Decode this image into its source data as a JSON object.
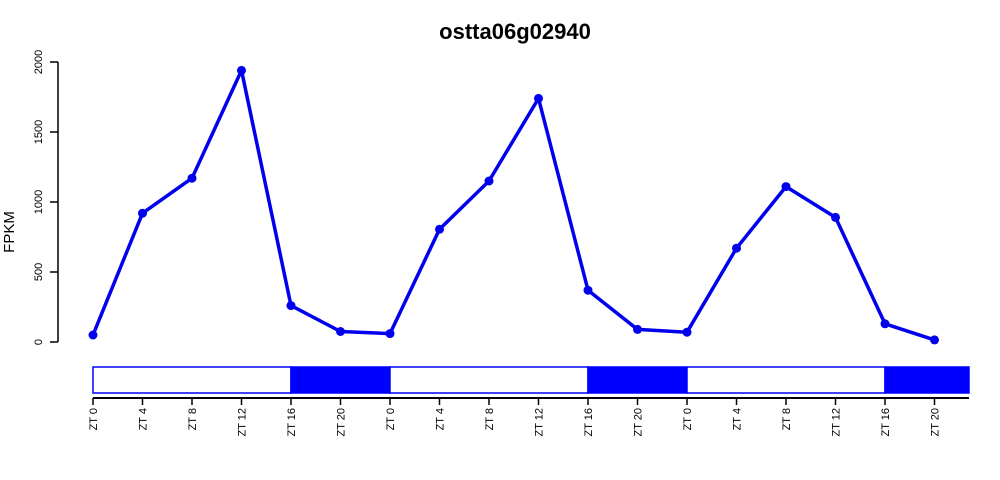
{
  "chart_data": {
    "type": "line",
    "title": "ostta06g02940",
    "xlabel": "",
    "ylabel": "FPKM",
    "ylim": [
      0,
      2000
    ],
    "yticks": [
      "0",
      "500",
      "1000",
      "1500",
      "2000"
    ],
    "categories": [
      "ZT 0",
      "ZT 4",
      "ZT 8",
      "ZT 12",
      "ZT 16",
      "ZT 20",
      "ZT 0",
      "ZT 4",
      "ZT 8",
      "ZT 12",
      "ZT 16",
      "ZT 20",
      "ZT 0",
      "ZT 4",
      "ZT 8",
      "ZT 12",
      "ZT 16",
      "ZT 20"
    ],
    "series": [
      {
        "values": [
          50,
          920,
          1170,
          1940,
          260,
          75,
          60,
          805,
          1150,
          1740,
          370,
          90,
          70,
          670,
          1110,
          890,
          130,
          15
        ]
      }
    ],
    "line_color": "#0000ee",
    "light_dark_bar": [
      {
        "phase": "light",
        "color": "#ffffff"
      },
      {
        "phase": "dark",
        "color": "#0000ff"
      },
      {
        "phase": "light",
        "color": "#ffffff"
      },
      {
        "phase": "dark",
        "color": "#0000ff"
      },
      {
        "phase": "light",
        "color": "#ffffff"
      },
      {
        "phase": "dark",
        "color": "#0000ff"
      }
    ],
    "grid": false,
    "legend": "none"
  }
}
